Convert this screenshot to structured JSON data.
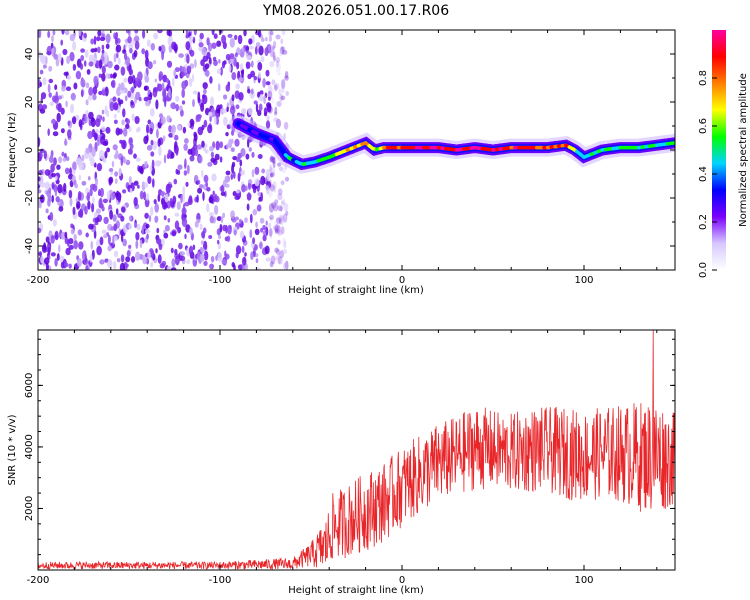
{
  "title": "YM08.2026.051.00.17.R06",
  "colors": {
    "snr_line": "#e8262a",
    "spectrogram_noise": "#7a1ee0",
    "colorbar_stops": [
      "#ffffff",
      "#d6c8ff",
      "#7a00ff",
      "#0000ff",
      "#00d4ff",
      "#00ff00",
      "#ffff00",
      "#ff7f00",
      "#ff0000",
      "#ff00a0"
    ]
  },
  "chart_data": [
    {
      "type": "heatmap",
      "title": "YM08.2026.051.00.17.R06",
      "xlabel": "Height of straight line (km)",
      "ylabel": "Frequency (Hz)",
      "xlim": [
        -200,
        150
      ],
      "ylim": [
        -50,
        50
      ],
      "xticks": [
        -200,
        -100,
        0,
        100
      ],
      "yticks": [
        40,
        20,
        0,
        -20,
        -40
      ],
      "noise_region_x": [
        -200,
        -63
      ],
      "colorbar": {
        "label": "Normalized spectral amplitude",
        "range": [
          0,
          1
        ],
        "ticks": [
          0.0,
          0.2,
          0.4,
          0.6,
          0.8
        ]
      },
      "ridge": {
        "x": [
          -90,
          -80,
          -70,
          -63,
          -55,
          -48,
          -40,
          -30,
          -20,
          -15,
          -10,
          0,
          10,
          20,
          30,
          40,
          50,
          60,
          70,
          80,
          90,
          95,
          100,
          110,
          120,
          130,
          140,
          150
        ],
        "freq": [
          11,
          7,
          4,
          -3,
          -6,
          -5,
          -3,
          0,
          3,
          0,
          1,
          1,
          1,
          1,
          0,
          1,
          0,
          1,
          1,
          1,
          2,
          0,
          -3,
          0,
          1,
          1,
          2,
          3
        ],
        "amplitude": [
          0.25,
          0.3,
          0.3,
          0.45,
          0.45,
          0.5,
          0.55,
          0.7,
          0.75,
          0.6,
          0.8,
          0.9,
          0.95,
          0.92,
          0.95,
          0.97,
          0.9,
          0.88,
          0.85,
          0.85,
          0.8,
          0.6,
          0.45,
          0.5,
          0.55,
          0.55,
          0.5,
          0.45
        ]
      }
    },
    {
      "type": "line",
      "xlabel": "Height of straight line (km)",
      "ylabel": "SNR (10 * v/v)",
      "xlim": [
        -200,
        150
      ],
      "ylim": [
        0,
        7800
      ],
      "xticks": [
        -200,
        -100,
        0,
        100
      ],
      "yticks": [
        2000,
        4000,
        6000
      ],
      "series": [
        {
          "name": "SNR",
          "envelope_x": [
            -200,
            -100,
            -60,
            -50,
            -42,
            -38,
            -30,
            -20,
            -10,
            0,
            10,
            20,
            30,
            40,
            50,
            60,
            70,
            80,
            90,
            100,
            110,
            120,
            130,
            140,
            150
          ],
          "envelope_mean": [
            150,
            150,
            200,
            500,
            800,
            1400,
            1600,
            1900,
            2200,
            2700,
            3100,
            3500,
            3700,
            4000,
            3900,
            3800,
            3900,
            3900,
            3800,
            3700,
            3800,
            3800,
            3700,
            3700,
            3600
          ],
          "envelope_amp": [
            120,
            120,
            200,
            400,
            900,
            1100,
            1200,
            1300,
            1300,
            1300,
            1300,
            1300,
            1300,
            1400,
            1300,
            1300,
            1400,
            1400,
            1500,
            1500,
            1500,
            1600,
            1800,
            1900,
            1500
          ],
          "peak_value": 7800,
          "peak_x": 138
        }
      ]
    }
  ]
}
